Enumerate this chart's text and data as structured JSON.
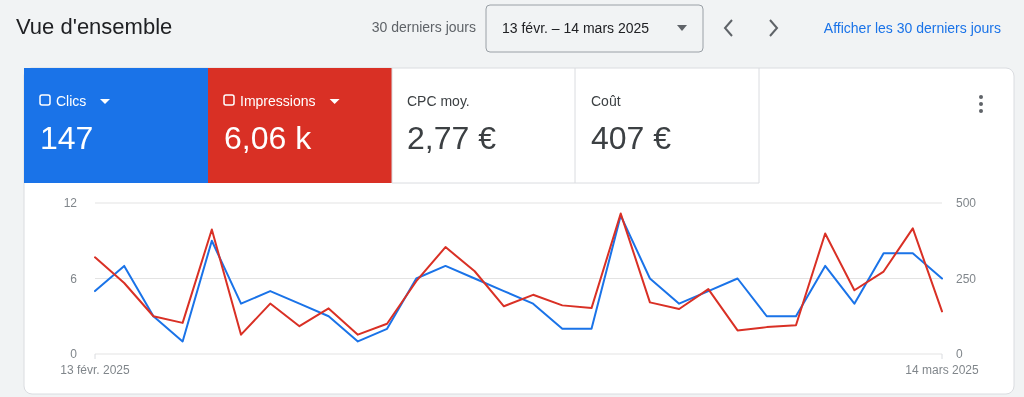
{
  "chart_data": {
    "type": "line",
    "title": "Vue d'ensemble",
    "annotations": [
      "30 derniers jours",
      "13 févr. – 14 mars 2025",
      "Afficher les 30 derniers jours",
      "147",
      "6,06 k",
      "CPC moy.",
      "2,77 €",
      "Coût",
      "407 €"
    ],
    "x": [
      "2025-02-13",
      "2025-02-14",
      "2025-02-15",
      "2025-02-16",
      "2025-02-17",
      "2025-02-18",
      "2025-02-19",
      "2025-02-20",
      "2025-02-21",
      "2025-02-22",
      "2025-02-23",
      "2025-02-24",
      "2025-02-25",
      "2025-02-26",
      "2025-02-27",
      "2025-02-28",
      "2025-03-01",
      "2025-03-02",
      "2025-03-03",
      "2025-03-04",
      "2025-03-05",
      "2025-03-06",
      "2025-03-07",
      "2025-03-08",
      "2025-03-09",
      "2025-03-10",
      "2025-03-11",
      "2025-03-12",
      "2025-03-13",
      "2025-03-14"
    ],
    "series": [
      {
        "name": "Clics",
        "color": "#1a73e8",
        "values": [
          5,
          7,
          3,
          1,
          9,
          4,
          5,
          4,
          3,
          1,
          2,
          6,
          7,
          6,
          5,
          4,
          2,
          2,
          11,
          6,
          4,
          5,
          6,
          3,
          3,
          7,
          4,
          8,
          8,
          6
        ]
      },
      {
        "name": "Impressions",
        "color": "#d93025",
        "axis": "y2",
        "values": [
          320,
          235,
          125,
          103,
          412,
          64,
          167,
          92,
          151,
          64,
          100,
          241,
          354,
          274,
          158,
          196,
          161,
          152,
          465,
          171,
          149,
          215,
          78,
          89,
          95,
          399,
          211,
          273,
          416,
          141
        ]
      }
    ],
    "xlim": [
      "2025-02-13",
      "2025-03-14"
    ],
    "xticks": [
      {
        "value": "2025-02-13",
        "label": "13 févr. 2025"
      },
      {
        "value": "2025-03-14",
        "label": "14 mars 2025"
      }
    ],
    "ylim": [
      0,
      12
    ],
    "yticks": [
      0,
      6,
      12
    ],
    "y2lim": [
      0,
      500
    ],
    "y2ticks": [
      0,
      250,
      500
    ],
    "grid": "y",
    "legend": "top left",
    "line_style": "solid",
    "marker": "none"
  }
}
